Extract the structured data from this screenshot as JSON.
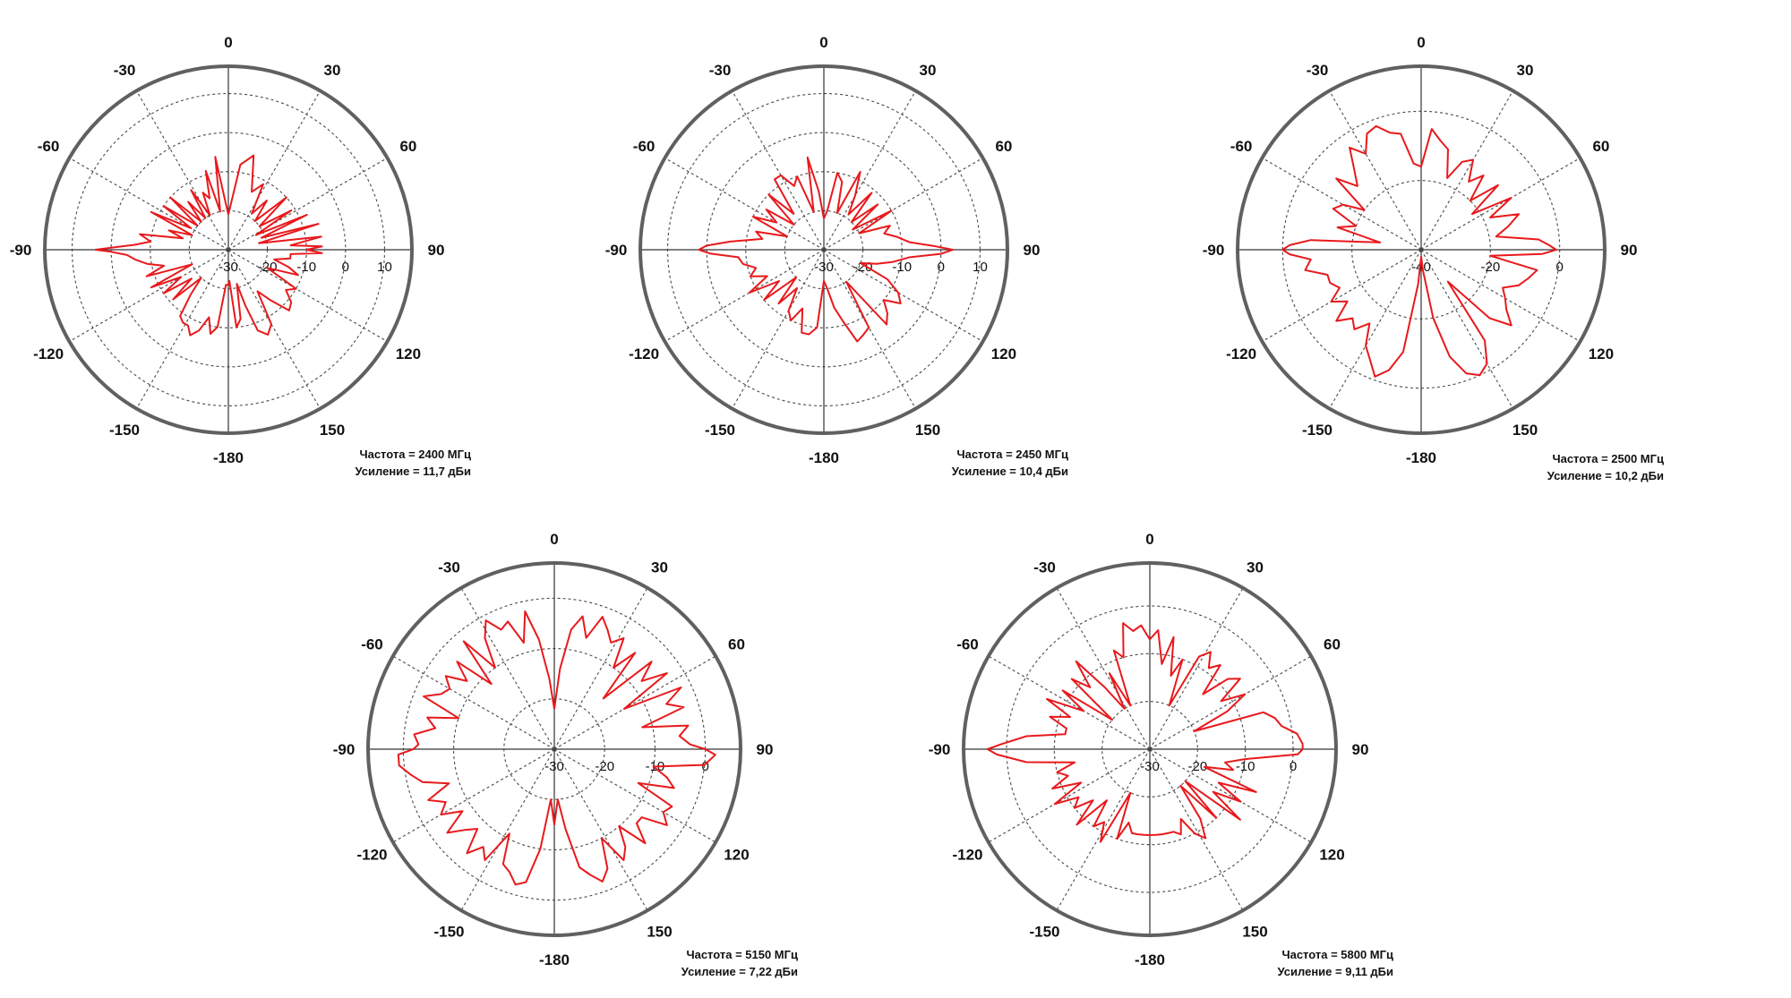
{
  "colors": {
    "trace": "#e8191c",
    "outer_circle": "#606060",
    "grid": "#4a4a4a",
    "text": "#111111",
    "background": "#ffffff"
  },
  "chart_data": [
    {
      "type": "polar",
      "title": "",
      "caption": [
        "Частота = 2400 МГц",
        "Усиление = 11,7 дБи"
      ],
      "angle_ticks": [
        "0",
        "30",
        "60",
        "90",
        "120",
        "150",
        "-180",
        "-150",
        "-120",
        "-90",
        "-60",
        "-30"
      ],
      "radial_ticks": [
        "-30",
        "-20",
        "-10",
        "0",
        "10"
      ],
      "rlim": [
        -30,
        17
      ],
      "angle_unit": "degrees",
      "angle_zero": "top",
      "angle_direction": "clockwise",
      "grid": true,
      "series": [
        {
          "angles": [
            0,
            8,
            15,
            22,
            28,
            33,
            38,
            43,
            48,
            53,
            58,
            62,
            66,
            70,
            74,
            78,
            82,
            86,
            88,
            90,
            92,
            94,
            98,
            102,
            106,
            110,
            115,
            120,
            125,
            130,
            135,
            140,
            145,
            150,
            155,
            160,
            163,
            166,
            170,
            174,
            178,
            180,
            -176,
            -172,
            -168,
            -164,
            -160,
            -156,
            -152,
            -148,
            -144,
            -140,
            -136,
            -132,
            -128,
            -124,
            -120,
            -116,
            -112,
            -108,
            -104,
            -100,
            -96,
            -93,
            -91,
            -90,
            -89,
            -87,
            -84,
            -80,
            -76,
            -72,
            -68,
            -64,
            -60,
            -56,
            -52,
            -48,
            -44,
            -40,
            -36,
            -32,
            -28,
            -24,
            -20,
            -16,
            -12,
            -8,
            -4,
            0
          ],
          "values": [
            -21,
            -8,
            -5,
            -14,
            -11,
            -19,
            -14,
            -20,
            -10,
            -20,
            -11,
            -22,
            -8,
            -21,
            -6,
            -22,
            -6,
            -14,
            -6,
            -10,
            -6,
            -14,
            -14,
            -18,
            -14,
            -11,
            -19,
            -10,
            -12,
            -9,
            -8,
            -13,
            -17,
            -8,
            -6,
            -8,
            -15,
            -21,
            -12,
            -10,
            -22,
            -21,
            -21,
            -10,
            -8,
            -12,
            -8,
            -6,
            -8,
            -8,
            -9,
            -15,
            -20,
            -11,
            -18,
            -10,
            -16,
            -8,
            -20,
            -8,
            -13,
            -9,
            -6,
            -4,
            0,
            4,
            0,
            -6,
            -10,
            -7,
            -18,
            -14,
            -20,
            -8,
            -19,
            -10,
            -20,
            -10,
            -20,
            -14,
            -20,
            -12,
            -20,
            -14,
            -16,
            -9,
            -20,
            -6,
            -17,
            -21
          ]
        }
      ]
    },
    {
      "type": "polar",
      "title": "",
      "caption": [
        "Частота = 2450 МГц",
        "Усиление = 10,4 дБи"
      ],
      "angle_ticks": [
        "0",
        "30",
        "60",
        "90",
        "120",
        "150",
        "-180",
        "-150",
        "-120",
        "-90",
        "-60",
        "-30"
      ],
      "radial_ticks": [
        "-30",
        "-20",
        "-10",
        "0",
        "10"
      ],
      "rlim": [
        -30,
        17
      ],
      "angle_unit": "degrees",
      "angle_zero": "top",
      "angle_direction": "clockwise",
      "grid": true,
      "series": [
        {
          "angles": [
            0,
            5,
            10,
            15,
            20,
            25,
            30,
            35,
            40,
            45,
            50,
            55,
            60,
            65,
            70,
            75,
            80,
            85,
            88,
            90,
            92,
            95,
            100,
            105,
            110,
            115,
            120,
            125,
            130,
            135,
            140,
            145,
            150,
            155,
            160,
            165,
            170,
            175,
            180,
            -175,
            -170,
            -165,
            -160,
            -155,
            -150,
            -145,
            -140,
            -135,
            -130,
            -125,
            -120,
            -115,
            -110,
            -105,
            -100,
            -95,
            -92,
            -90,
            -88,
            -85,
            -80,
            -75,
            -70,
            -65,
            -60,
            -55,
            -50,
            -45,
            -40,
            -35,
            -30,
            -25,
            -20,
            -15,
            -10,
            -5,
            0
          ],
          "values": [
            -22,
            -20,
            -10,
            -12,
            -20,
            -8,
            -14,
            -19,
            -11,
            -20,
            -12,
            -21,
            -10,
            -20,
            -12,
            -14,
            -11,
            -8,
            -2,
            3,
            0,
            -8,
            -12,
            -16,
            -20,
            -12,
            -8,
            -6,
            -10,
            -7,
            -5,
            -20,
            -7,
            -6,
            -5,
            -11,
            -15,
            -20,
            -22,
            -10,
            -8,
            -8,
            -14,
            -10,
            -12,
            -18,
            -12,
            -20,
            -10,
            -16,
            -8,
            -14,
            -10,
            -12,
            -9,
            -8,
            -1,
            2,
            0,
            -6,
            -14,
            -12,
            -20,
            -10,
            -16,
            -12,
            -20,
            -10,
            -18,
            -8,
            -8,
            -12,
            -10,
            -20,
            -6,
            -15,
            -22
          ]
        }
      ]
    },
    {
      "type": "polar",
      "title": "",
      "caption": [
        "Частота = 2500 МГц",
        "Усиление = 10,2 дБи"
      ],
      "angle_ticks": [
        "0",
        "30",
        "60",
        "90",
        "120",
        "150",
        "-180",
        "-150",
        "-120",
        "-90",
        "-60",
        "-30"
      ],
      "radial_ticks": [
        "-40",
        "-20",
        "0"
      ],
      "rlim": [
        -40,
        13
      ],
      "angle_unit": "degrees",
      "angle_zero": "top",
      "angle_direction": "clockwise",
      "grid": true,
      "series": [
        {
          "angles": [
            0,
            5,
            10,
            15,
            20,
            25,
            30,
            35,
            40,
            45,
            50,
            55,
            60,
            65,
            70,
            75,
            80,
            85,
            88,
            90,
            92,
            95,
            100,
            105,
            110,
            115,
            120,
            125,
            130,
            135,
            140,
            145,
            150,
            155,
            160,
            165,
            170,
            175,
            180,
            -175,
            -170,
            -165,
            -160,
            -155,
            -150,
            -145,
            -140,
            -135,
            -130,
            -125,
            -120,
            -115,
            -110,
            -105,
            -100,
            -95,
            -92,
            -90,
            -88,
            -85,
            -80,
            -75,
            -70,
            -65,
            -60,
            -55,
            -50,
            -45,
            -40,
            -35,
            -30,
            -25,
            -20,
            -15,
            -10,
            -5,
            0
          ],
          "values": [
            -16,
            -5,
            -8,
            -10,
            -18,
            -12,
            -10,
            -16,
            -12,
            -20,
            -11,
            -22,
            -10,
            -18,
            -10,
            -14,
            -18,
            -6,
            -3,
            -1,
            -5,
            -20,
            -6,
            -8,
            -10,
            -14,
            -12,
            -10,
            -6,
            -12,
            -28,
            -8,
            -2,
            0,
            -2,
            -8,
            -20,
            -34,
            -38,
            -30,
            -10,
            -4,
            -1,
            -5,
            -8,
            -14,
            -10,
            -12,
            -8,
            -14,
            -10,
            -14,
            -12,
            -12,
            -6,
            -8,
            -2,
            0,
            -2,
            -8,
            -28,
            -15,
            -20,
            -12,
            -14,
            -20,
            -8,
            -14,
            -10,
            -4,
            -8,
            -3,
            -2,
            -5,
            -6,
            -15,
            -16
          ]
        }
      ]
    },
    {
      "type": "polar",
      "title": "",
      "caption": [
        "Частота = 5150 МГц",
        "Усиление = 7,22 дБи"
      ],
      "angle_ticks": [
        "0",
        "30",
        "60",
        "90",
        "120",
        "150",
        "-180",
        "-150",
        "-120",
        "-90",
        "-60",
        "-30"
      ],
      "radial_ticks": [
        "-30",
        "-20",
        "-10",
        "0"
      ],
      "rlim": [
        -30,
        7
      ],
      "angle_unit": "degrees",
      "angle_zero": "top",
      "angle_direction": "clockwise",
      "grid": true,
      "series": [
        {
          "angles": [
            0,
            4,
            8,
            12,
            16,
            20,
            24,
            28,
            32,
            36,
            40,
            44,
            48,
            52,
            56,
            60,
            64,
            68,
            72,
            76,
            80,
            84,
            88,
            90,
            92,
            96,
            100,
            104,
            108,
            112,
            116,
            120,
            124,
            128,
            132,
            136,
            140,
            144,
            148,
            152,
            156,
            160,
            164,
            168,
            172,
            176,
            180,
            -176,
            -172,
            -168,
            -164,
            -160,
            -156,
            -152,
            -148,
            -144,
            -140,
            -136,
            -132,
            -128,
            -124,
            -120,
            -116,
            -112,
            -108,
            -104,
            -100,
            -96,
            -92,
            -90,
            -88,
            -84,
            -80,
            -76,
            -72,
            -68,
            -64,
            -60,
            -56,
            -52,
            -48,
            -44,
            -40,
            -36,
            -32,
            -28,
            -24,
            -20,
            -16,
            -12,
            -8,
            -4,
            0
          ],
          "values": [
            -22,
            -14,
            -6,
            -3,
            -7,
            -2,
            -4,
            -6,
            -4,
            -10,
            -5,
            -16,
            -4,
            -8,
            -3,
            -14,
            -2,
            -6,
            -3,
            -12,
            -3,
            -5,
            -3,
            0,
            2,
            0,
            -10,
            -7,
            -5,
            -12,
            -4,
            -5,
            -3,
            -8,
            -8,
            -4,
            -10,
            -6,
            -4,
            -10,
            -4,
            -2,
            -4,
            -6,
            -14,
            -20,
            -15,
            -20,
            -10,
            -3,
            -2,
            -4,
            -5,
            -11,
            -4,
            -6,
            -3,
            -8,
            -6,
            -3,
            -8,
            -4,
            -6,
            -3,
            -8,
            -3,
            -1,
            1,
            1,
            -2,
            -3,
            -2,
            -6,
            -4,
            -10,
            -2,
            -5,
            -6,
            -4,
            -8,
            -4,
            -12,
            -2,
            -10,
            -4,
            -1,
            -4,
            -3,
            -8,
            -2,
            -8,
            -16,
            -22
          ]
        }
      ]
    },
    {
      "type": "polar",
      "title": "",
      "caption": [
        "Частота = 5800 МГц",
        "Усиление = 9,11 дБи"
      ],
      "angle_ticks": [
        "0",
        "30",
        "60",
        "90",
        "120",
        "150",
        "-180",
        "-150",
        "-120",
        "-90",
        "-60",
        "-30"
      ],
      "radial_ticks": [
        "-30",
        "-20",
        "-10",
        "0"
      ],
      "rlim": [
        -30,
        9
      ],
      "angle_unit": "degrees",
      "angle_zero": "top",
      "angle_direction": "clockwise",
      "grid": true,
      "series": [
        {
          "angles": [
            0,
            4,
            8,
            12,
            16,
            20,
            24,
            28,
            32,
            36,
            40,
            44,
            48,
            52,
            56,
            60,
            64,
            68,
            72,
            76,
            80,
            84,
            88,
            90,
            92,
            96,
            100,
            104,
            108,
            112,
            116,
            120,
            124,
            128,
            132,
            136,
            140,
            144,
            148,
            152,
            156,
            160,
            164,
            168,
            172,
            176,
            180,
            -176,
            -172,
            -168,
            -164,
            -160,
            -156,
            -152,
            -148,
            -144,
            -140,
            -136,
            -132,
            -128,
            -124,
            -120,
            -116,
            -112,
            -108,
            -104,
            -100,
            -96,
            -92,
            -90,
            -88,
            -84,
            -80,
            -76,
            -72,
            -68,
            -64,
            -60,
            -56,
            -52,
            -48,
            -44,
            -40,
            -36,
            -32,
            -28,
            -24,
            -20,
            -16,
            -12,
            -8,
            -4,
            0
          ],
          "values": [
            -7,
            -5,
            -12,
            -6,
            -14,
            -10,
            -20,
            -8,
            -6,
            -9,
            -7,
            -14,
            -8,
            -6,
            -12,
            -7,
            -12,
            -20,
            -5,
            -3,
            -2,
            1,
            2,
            2,
            1,
            -10,
            -14,
            -12,
            -18,
            -6,
            -14,
            -8,
            -14,
            -6,
            -20,
            -10,
            -20,
            -12,
            -8,
            -10,
            -14,
            -11,
            -12,
            -12,
            -12,
            -12,
            -12,
            -12,
            -12,
            -12,
            -14,
            -10,
            -20,
            -8,
            -12,
            -10,
            -16,
            -8,
            -14,
            -10,
            -12,
            -7,
            -14,
            -8,
            -12,
            -10,
            -14,
            -4,
            2,
            4,
            1,
            -4,
            -12,
            -12,
            -8,
            -12,
            -6,
            -14,
            -8,
            -20,
            -8,
            -12,
            -6,
            -14,
            -20,
            -12,
            -20,
            -8,
            -10,
            -3,
            -5,
            -4,
            -7
          ]
        }
      ]
    }
  ]
}
